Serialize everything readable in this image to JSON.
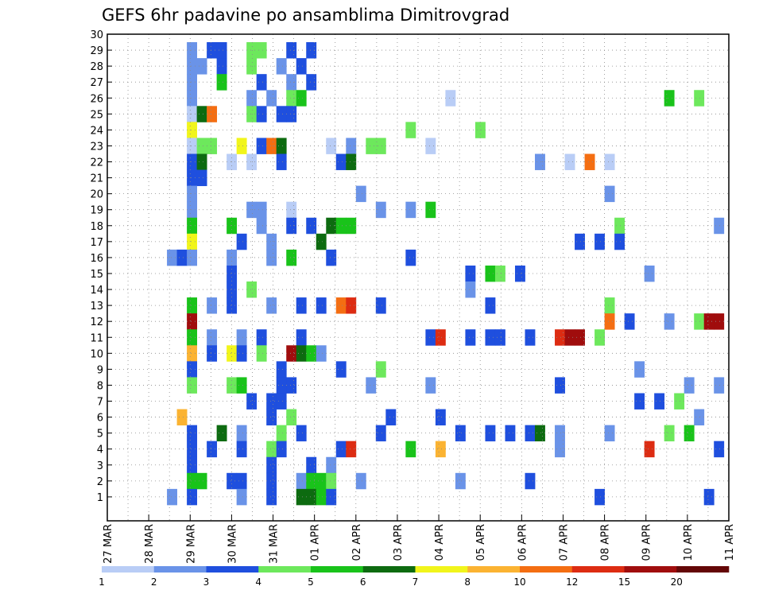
{
  "chart_data": {
    "type": "heatmap",
    "title": "GEFS 6hr padavine po ansamblima Dimitrovgrad",
    "xlabel": "",
    "ylabel": "",
    "x_tick_labels": [
      "27 MAR",
      "28 MAR",
      "29 MAR",
      "30 MAR",
      "31 MAR",
      "01 APR",
      "02 APR",
      "03 APR",
      "04 APR",
      "05 APR",
      "06 APR",
      "07 APR",
      "08 APR",
      "09 APR",
      "10 APR",
      "11 APR"
    ],
    "y_tick_labels": [
      "1",
      "2",
      "3",
      "4",
      "5",
      "6",
      "7",
      "8",
      "9",
      "10",
      "11",
      "12",
      "13",
      "14",
      "15",
      "16",
      "17",
      "18",
      "19",
      "20",
      "21",
      "22",
      "23",
      "24",
      "25",
      "26",
      "27",
      "28",
      "29",
      "30"
    ],
    "time_steps": 62,
    "members": 30,
    "grid": true,
    "colorbar": {
      "position": "bottom",
      "levels": [
        "1",
        "2",
        "3",
        "4",
        "5",
        "6",
        "7",
        "8",
        "10",
        "12",
        "15",
        "20"
      ],
      "colors": [
        "#b9cdf6",
        "#6a93e8",
        "#1f4fde",
        "#6de85c",
        "#19c31a",
        "#0d6b10",
        "#f1f51b",
        "#fbb332",
        "#f46e12",
        "#dd2c12",
        "#a00d0d",
        "#640707"
      ]
    },
    "rows": [
      {
        "member": 30,
        "cells": "................................................................"
      },
      {
        "member": 29,
        "cells": "........2.33..44..3.3..........................................."
      },
      {
        "member": 28,
        "cells": "........22.3..4..2.3............................................"
      },
      {
        "member": 27,
        "cells": "........2..5...3..2.3..........................................."
      },
      {
        "member": 26,
        "cells": "........2.....2.2.45..............1.....................5..4..2.."
      },
      {
        "member": 25,
        "cells": "........169...43.33.............................................."
      },
      {
        "member": 24,
        "cells": "........7.....................4......4.........................."
      },
      {
        "member": 23,
        "cells": "........144..7.396....1.2.44....1.............................."
      },
      {
        "member": 22,
        "cells": "........36..1.1..3.....36..................2..1.9.1............."
      },
      {
        "member": 21,
        "cells": "........33....................................................."
      },
      {
        "member": 20,
        "cells": "........2................2........................2.............."
      },
      {
        "member": 19,
        "cells": "........2.....22..1........2..2.5..............................."
      },
      {
        "member": 18,
        "cells": "........5...5..2..3.3.655..........................4.........2..."
      },
      {
        "member": 17,
        "cells": "........7....3..2....6.........................3.3.3..........5.."
      },
      {
        "member": 16,
        "cells": "......232...2...2.5...3.......3..................................."
      },
      {
        "member": 15,
        "cells": "............3.......................3.54.3............2........1."
      },
      {
        "member": 14,
        "cells": "............3.4.....................2.........................2.."
      },
      {
        "member": 13,
        "cells": "........5.2.3...2..3.3.9A..3..........3...........4..............."
      },
      {
        "member": 12,
        "cells": "........B.........................................9.3...2..4BB..2."
      },
      {
        "member": 11,
        "cells": "........5.2..2.3...3............3A..3.33..3..ABB.4....................."
      },
      {
        "member": 10,
        "cells": "........8.3.73.4..B652............................................"
      },
      {
        "member": 9,
        "cells": "........3........3.....3...4.........................2..........2"
      },
      {
        "member": 8,
        "cells": "........4...45...33.......2.....2............3............2..2..."
      },
      {
        "member": 7,
        "cells": "..............3.33...................................3.3.4......."
      },
      {
        "member": 6,
        "cells": ".......8........3.4.........3....3.........................2..3."
      },
      {
        "member": 5,
        "cells": "........3..6.2...4.3.......3.......3..3.3.36.2....2.....4.5......"
      },
      {
        "member": 4,
        "cells": "........3.3..3..43.....3A.....5..8...........2........A......3..."
      },
      {
        "member": 3,
        "cells": "........3.......3...3.2......................................."
      },
      {
        "member": 2,
        "cells": "........55..33..3..2554..2.........2......3........................"
      },
      {
        "member": 1,
        "cells": "......2.3....2..3..6653..........................3..........3......"
      }
    ]
  }
}
